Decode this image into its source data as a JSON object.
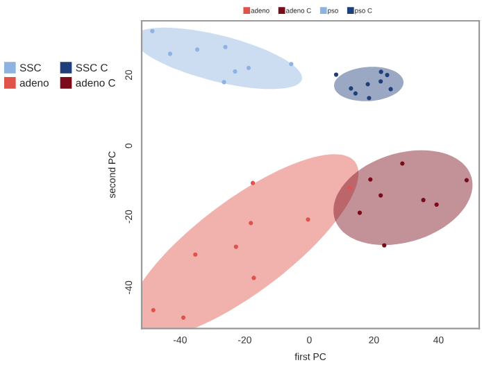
{
  "chart_data": {
    "type": "scatter",
    "xlabel": "first PC",
    "ylabel": "second PC",
    "xlim": [
      -51.9,
      52.6
    ],
    "ylim": [
      -51.6,
      35.3
    ],
    "xticks": [
      -40,
      -20,
      0,
      20,
      40
    ],
    "yticks": [
      -40,
      -20,
      0,
      20
    ],
    "grid": false,
    "legend": "left",
    "marker": "circle",
    "annotations": [
      "adeno",
      "adeno C",
      "pso",
      "pso C"
    ],
    "series": [
      {
        "name": "SSC",
        "color": "#8db3e2",
        "x": [
          -48.6,
          -43.1,
          -34.7,
          -26.0,
          -26.4,
          -23.0,
          -18.8,
          -5.6
        ],
        "values": [
          32.4,
          26.0,
          27.2,
          27.9,
          18.0,
          21.0,
          22.0,
          23.1
        ]
      },
      {
        "name": "adeno",
        "color": "#e0534a",
        "x": [
          12.5,
          -17.5,
          -0.4,
          -18.1,
          -22.7,
          -35.3,
          -17.2,
          -48.3,
          -39.0
        ],
        "values": [
          -11.8,
          -10.5,
          -20.8,
          -21.8,
          -28.5,
          -30.7,
          -37.3,
          -46.4,
          -48.5
        ]
      },
      {
        "name": "SSC C",
        "color": "#1f3f7a",
        "x": [
          8.3,
          12.9,
          14.3,
          18.1,
          18.5,
          22.2,
          22.1,
          24.1,
          25.2
        ],
        "values": [
          20.1,
          16.2,
          14.8,
          17.4,
          13.5,
          20.9,
          18.2,
          20.0,
          16.0
        ]
      },
      {
        "name": "adeno C",
        "color": "#7b0a1a",
        "x": [
          28.8,
          18.9,
          48.7,
          22.1,
          35.3,
          39.4,
          15.6,
          23.2
        ],
        "values": [
          -5.0,
          -9.5,
          -9.7,
          -14.0,
          -15.3,
          -16.6,
          -18.9,
          -28.1
        ]
      }
    ]
  }
}
